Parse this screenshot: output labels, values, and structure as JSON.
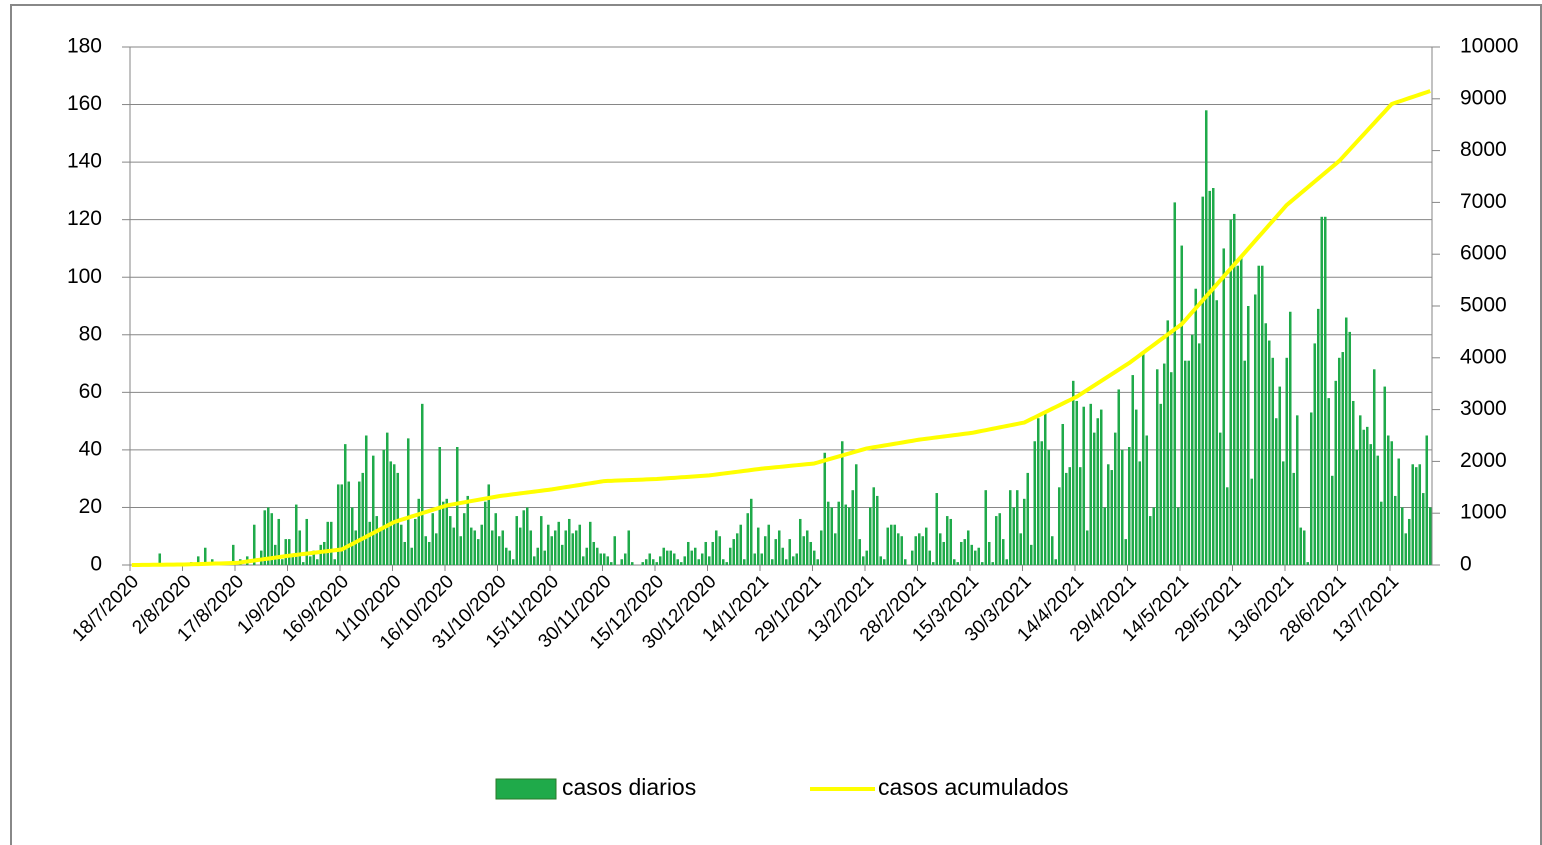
{
  "chart_data": {
    "type": "bar_line",
    "categories": [
      "18/7/2020",
      null,
      null,
      null,
      null,
      null,
      null,
      null,
      null,
      null,
      null,
      null,
      null,
      null,
      null,
      "2/8/2020",
      null,
      null,
      null,
      null,
      null,
      null,
      null,
      null,
      null,
      null,
      null,
      null,
      null,
      null,
      "17/8/2020",
      null,
      null,
      null,
      null,
      null,
      null,
      null,
      null,
      null,
      null,
      null,
      null,
      null,
      null,
      "1/9/2020",
      null,
      null,
      null,
      null,
      null,
      null,
      null,
      null,
      null,
      null,
      null,
      null,
      null,
      null,
      "16/9/2020",
      null,
      null,
      null,
      null,
      null,
      null,
      null,
      null,
      null,
      null,
      null,
      null,
      null,
      null,
      "1/10/2020",
      null,
      null,
      null,
      null,
      null,
      null,
      null,
      null,
      null,
      null,
      null,
      null,
      null,
      null,
      "16/10/2020",
      null,
      null,
      null,
      null,
      null,
      null,
      null,
      null,
      null,
      null,
      null,
      null,
      null,
      null,
      "31/10/2020",
      null,
      null,
      null,
      null,
      null,
      null,
      null,
      null,
      null,
      null,
      null,
      null,
      null,
      null,
      "15/11/2020",
      null,
      null,
      null,
      null,
      null,
      null,
      null,
      null,
      null,
      null,
      null,
      null,
      null,
      null,
      "30/11/2020",
      null,
      null,
      null,
      null,
      null,
      null,
      null,
      null,
      null,
      null,
      null,
      null,
      null,
      null,
      "15/12/2020",
      null,
      null,
      null,
      null,
      null,
      null,
      null,
      null,
      null,
      null,
      null,
      null,
      null,
      null,
      "30/12/2020",
      null,
      null,
      null,
      null,
      null,
      null,
      null,
      null,
      null,
      null,
      null,
      null,
      null,
      null,
      "14/1/2021",
      null,
      null,
      null,
      null,
      null,
      null,
      null,
      null,
      null,
      null,
      null,
      null,
      null,
      null,
      "29/1/2021",
      null,
      null,
      null,
      null,
      null,
      null,
      null,
      null,
      null,
      null,
      null,
      null,
      null,
      null,
      "13/2/2021",
      null,
      null,
      null,
      null,
      null,
      null,
      null,
      null,
      null,
      null,
      null,
      null,
      null,
      null,
      "28/2/2021",
      null,
      null,
      null,
      null,
      null,
      null,
      null,
      null,
      null,
      null,
      null,
      null,
      null,
      null,
      "15/3/2021",
      null,
      null,
      null,
      null,
      null,
      null,
      null,
      null,
      null,
      null,
      null,
      null,
      null,
      null,
      "30/3/2021",
      null,
      null,
      null,
      null,
      null,
      null,
      null,
      null,
      null,
      null,
      null,
      null,
      null,
      null,
      "14/4/2021",
      null,
      null,
      null,
      null,
      null,
      null,
      null,
      null,
      null,
      null,
      null,
      null,
      null,
      null,
      "29/4/2021",
      null,
      null,
      null,
      null,
      null,
      null,
      null,
      null,
      null,
      null,
      null,
      null,
      null,
      null,
      "14/5/2021",
      null,
      null,
      null,
      null,
      null,
      null,
      null,
      null,
      null,
      null,
      null,
      null,
      null,
      null,
      "29/5/2021",
      null,
      null,
      null,
      null,
      null,
      null,
      null,
      null,
      null,
      null,
      null,
      null,
      null,
      null,
      "13/6/2021",
      null,
      null,
      null,
      null,
      null,
      null,
      null,
      null,
      null,
      null,
      null,
      null,
      null,
      null,
      "28/6/2021",
      null,
      null,
      null,
      null,
      null,
      null,
      null,
      null,
      null,
      null,
      null,
      null,
      null,
      null,
      "13/7/2021",
      null,
      null,
      null,
      null,
      null,
      null,
      null,
      null,
      null,
      null,
      null
    ],
    "series": [
      {
        "name": "casos diarios",
        "type": "bar",
        "color": "#1faa4a",
        "values": [
          0,
          0,
          0,
          0,
          0,
          0,
          0,
          0,
          4,
          0,
          0,
          0,
          0,
          0,
          0,
          0,
          0,
          1,
          0,
          3,
          0,
          6,
          0,
          2,
          1,
          0,
          0,
          1,
          0,
          7,
          0,
          2,
          0,
          3,
          0,
          14,
          0,
          5,
          19,
          20,
          18,
          7,
          16,
          2,
          9,
          9,
          3,
          21,
          12,
          1,
          16,
          3,
          5,
          2,
          7,
          8,
          15,
          15,
          2,
          28,
          28,
          42,
          29,
          20,
          12,
          29,
          32,
          45,
          15,
          38,
          17,
          12,
          40,
          46,
          36,
          35,
          32,
          14,
          8,
          44,
          6,
          16,
          23,
          56,
          10,
          8,
          18,
          11,
          41,
          22,
          23,
          17,
          13,
          41,
          10,
          18,
          24,
          13,
          12,
          9,
          14,
          22,
          28,
          12,
          18,
          10,
          12,
          6,
          5,
          2,
          17,
          13,
          19,
          20,
          12,
          3,
          6,
          17,
          5,
          14,
          10,
          12,
          15,
          7,
          12,
          16,
          11,
          12,
          14,
          3,
          6,
          15,
          8,
          6,
          4,
          4,
          3,
          1,
          10,
          0,
          2,
          4,
          12,
          1,
          0,
          0,
          1,
          2,
          4,
          2,
          1,
          3,
          6,
          5,
          5,
          4,
          2,
          1,
          3,
          8,
          5,
          6,
          2,
          4,
          8,
          3,
          8,
          12,
          10,
          2,
          1,
          6,
          9,
          11,
          14,
          2,
          18,
          23,
          4,
          13,
          4,
          10,
          14,
          2,
          9,
          12,
          6,
          2,
          9,
          3,
          4,
          16,
          10,
          12,
          8,
          5,
          2,
          12,
          39,
          22,
          20,
          11,
          22,
          43,
          21,
          20,
          26,
          35,
          9,
          3,
          5,
          20,
          27,
          24,
          3,
          2,
          13,
          14,
          14,
          11,
          10,
          2,
          0,
          5,
          10,
          11,
          10,
          13,
          5,
          1,
          25,
          11,
          8,
          17,
          16,
          2,
          1,
          8,
          9,
          12,
          7,
          5,
          6,
          1,
          26,
          8,
          1,
          17,
          18,
          9,
          2,
          26,
          20,
          26,
          11,
          23,
          32,
          7,
          43,
          51,
          43,
          53,
          40,
          10,
          2,
          27,
          49,
          32,
          34,
          64,
          57,
          34,
          55,
          12,
          56,
          46,
          51,
          54,
          20,
          35,
          33,
          46,
          61,
          40,
          9,
          41,
          66,
          54,
          36,
          74,
          45,
          17,
          20,
          68,
          56,
          70,
          85,
          67,
          126,
          20,
          111,
          71,
          71,
          80,
          96,
          77,
          128,
          158,
          130,
          131,
          92,
          46,
          110,
          27,
          120,
          122,
          104,
          107,
          71,
          90,
          30,
          94,
          104,
          104,
          84,
          78,
          72,
          51,
          62,
          36,
          72,
          88,
          32,
          52,
          13,
          12,
          1,
          53,
          77,
          89,
          121,
          121,
          58,
          31,
          64,
          72,
          74,
          86,
          81,
          57,
          40,
          52,
          47,
          48,
          42,
          68,
          38,
          22,
          62,
          45,
          43,
          24,
          37,
          20,
          11,
          16,
          35,
          34,
          35,
          25,
          45,
          20
        ]
      },
      {
        "name": "casos acumulados",
        "type": "line",
        "axis": "y2",
        "color": "#ffff00",
        "values": [
          0,
          1,
          1,
          2,
          3,
          3,
          4,
          5,
          5,
          6,
          7,
          7,
          8,
          9,
          9,
          10,
          12,
          14,
          16,
          18,
          20,
          22,
          24,
          26,
          28,
          30,
          32,
          34,
          36,
          38,
          40,
          49,
          59,
          68,
          77,
          87,
          96,
          105,
          115,
          124,
          133,
          143,
          152,
          161,
          171,
          180,
          188,
          196,
          204,
          212,
          220,
          228,
          236,
          244,
          252,
          260,
          268,
          276,
          284,
          292,
          300,
          335,
          371,
          406,
          441,
          477,
          512,
          547,
          583,
          618,
          653,
          689,
          724,
          759,
          795,
          830,
          851,
          873,
          894,
          915,
          937,
          958,
          979,
          1001,
          1022,
          1043,
          1065,
          1086,
          1107,
          1129,
          1150,
          1162,
          1174,
          1186,
          1198,
          1210,
          1222,
          1234,
          1246,
          1258,
          1270,
          1282,
          1294,
          1306,
          1318,
          1330,
          1339,
          1347,
          1356,
          1365,
          1373,
          1382,
          1391,
          1399,
          1408,
          1417,
          1425,
          1434,
          1443,
          1451,
          1460,
          1471,
          1481,
          1492,
          1503,
          1513,
          1524,
          1535,
          1545,
          1556,
          1567,
          1577,
          1588,
          1599,
          1609,
          1620,
          1623,
          1625,
          1628,
          1631,
          1633,
          1636,
          1639,
          1641,
          1644,
          1647,
          1649,
          1652,
          1655,
          1657,
          1660,
          1665,
          1669,
          1674,
          1679,
          1683,
          1688,
          1693,
          1697,
          1702,
          1707,
          1711,
          1716,
          1721,
          1725,
          1730,
          1739,
          1747,
          1756,
          1765,
          1773,
          1782,
          1791,
          1799,
          1808,
          1817,
          1825,
          1834,
          1843,
          1851,
          1860,
          1867,
          1873,
          1880,
          1887,
          1893,
          1900,
          1907,
          1913,
          1920,
          1927,
          1933,
          1940,
          1947,
          1953,
          1960,
          1979,
          1999,
          2018,
          2037,
          2057,
          2076,
          2095,
          2115,
          2134,
          2153,
          2173,
          2192,
          2211,
          2231,
          2250,
          2261,
          2273,
          2284,
          2295,
          2307,
          2318,
          2329,
          2341,
          2352,
          2363,
          2375,
          2386,
          2397,
          2409,
          2420,
          2429,
          2437,
          2446,
          2455,
          2463,
          2472,
          2481,
          2489,
          2498,
          2507,
          2515,
          2524,
          2533,
          2541,
          2550,
          2563,
          2577,
          2590,
          2603,
          2617,
          2630,
          2643,
          2657,
          2670,
          2683,
          2697,
          2710,
          2723,
          2737,
          2750,
          2783,
          2817,
          2850,
          2883,
          2917,
          2950,
          2983,
          3017,
          3050,
          3083,
          3117,
          3150,
          3183,
          3217,
          3250,
          3293,
          3337,
          3380,
          3423,
          3467,
          3510,
          3553,
          3597,
          3640,
          3683,
          3727,
          3770,
          3813,
          3857,
          3900,
          3950,
          4000,
          4050,
          4100,
          4150,
          4200,
          4250,
          4300,
          4350,
          4400,
          4450,
          4500,
          4550,
          4600,
          4650,
          4727,
          4803,
          4880,
          4957,
          5033,
          5110,
          5187,
          5263,
          5340,
          5417,
          5493,
          5570,
          5647,
          5723,
          5800,
          5877,
          5953,
          6030,
          6107,
          6183,
          6260,
          6337,
          6413,
          6490,
          6567,
          6643,
          6720,
          6797,
          6873,
          6950,
          7007,
          7063,
          7120,
          7177,
          7233,
          7290,
          7347,
          7403,
          7460,
          7517,
          7573,
          7630,
          7687,
          7743,
          7800,
          7873,
          7947,
          8020,
          8093,
          8167,
          8240,
          8313,
          8387,
          8460,
          8533,
          8607,
          8680,
          8753,
          8827,
          8900,
          8923,
          8945,
          8968,
          8991,
          9014,
          9036,
          9059,
          9082,
          9105,
          9127,
          9150
        ]
      }
    ],
    "ylim": [
      0,
      180
    ],
    "yticks": [
      0,
      20,
      40,
      60,
      80,
      100,
      120,
      140,
      160,
      180
    ],
    "y2lim": [
      0,
      10000
    ],
    "y2ticks": [
      0,
      1000,
      2000,
      3000,
      4000,
      5000,
      6000,
      7000,
      8000,
      9000,
      10000
    ],
    "grid": true,
    "legend": "bottom"
  }
}
